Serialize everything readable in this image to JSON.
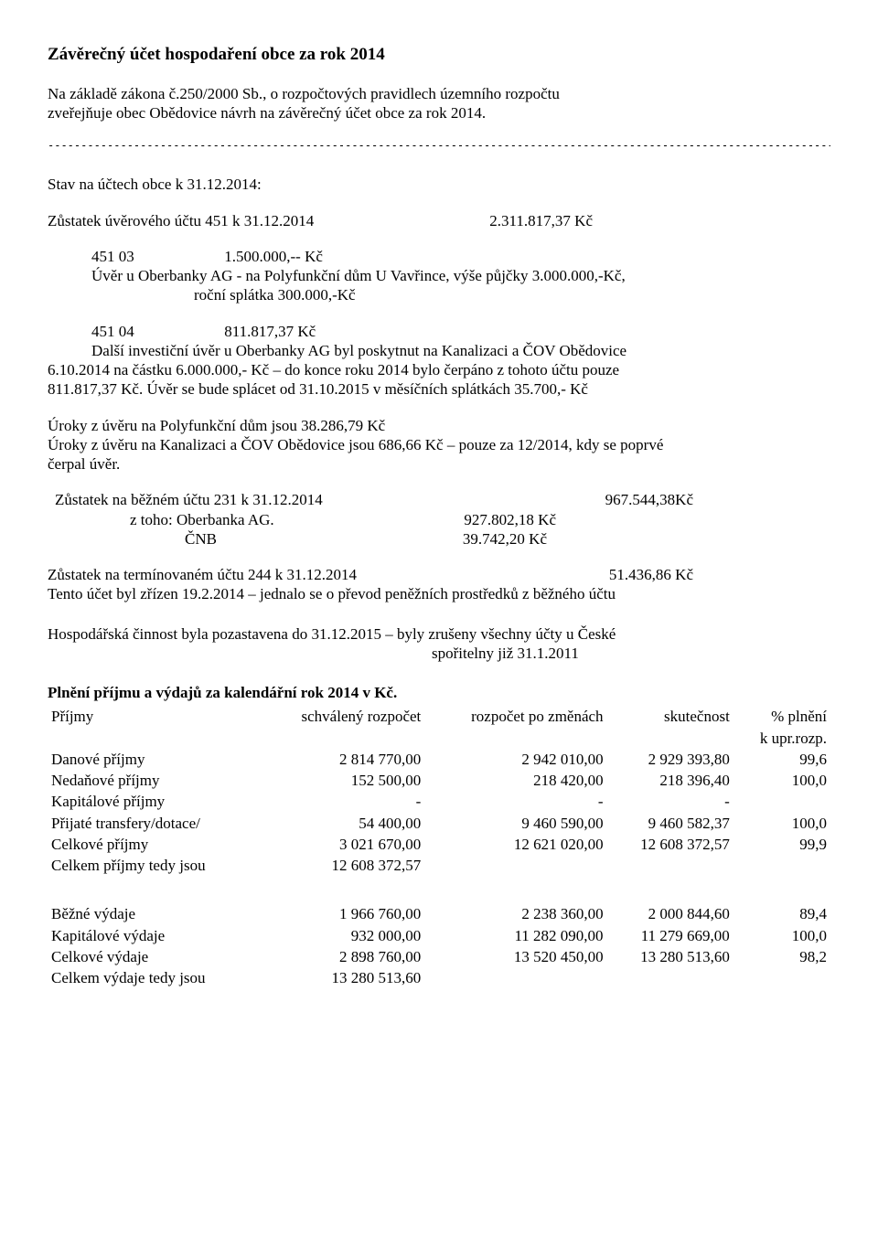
{
  "title": "Závěrečný účet hospodaření obce za rok 2014",
  "intro_l1": "Na základě zákona č.250/2000 Sb., o rozpočtových pravidlech územního rozpočtu",
  "intro_l2": "zveřejňuje obec Obědovice návrh na závěrečný účet obce za rok 2014.",
  "divider": "---------------------------------------------------------------------------------------------------------------------------------------------------------",
  "stav": "Stav na účtech obce k 31.12.2014:",
  "zust451_label": "Zůstatek úvěrového  účtu 451  k 31.12.2014",
  "zust451_value": "2.311.817,37 Kč",
  "acc451_03_code": "451 03",
  "acc451_03_val": "1.500.000,-- Kč",
  "acc451_03_l1": "Úvěr u Oberbanky AG  - na Polyfunkční dům U Vavřince,  výše půjčky  3.000.000,-Kč,",
  "acc451_03_l2": "roční splátka 300.000,-Kč",
  "acc451_04_code": "451 04",
  "acc451_04_val": "811.817,37 Kč",
  "acc451_04_l1": "Další investiční úvěr u Oberbanky AG byl poskytnut na Kanalizaci a ČOV Obědovice",
  "acc451_04_l2": "6.10.2014 na částku 6.000.000,- Kč – do konce roku 2014 bylo čerpáno z tohoto účtu pouze",
  "acc451_04_l3": "811.817,37 Kč. Úvěr se bude splácet od 31.10.2015 v měsíčních splátkách 35.700,- Kč",
  "uroky_l1": "Úroky z úvěru na Polyfunkční dům jsou 38.286,79 Kč",
  "uroky_l2": "Úroky z úvěru na Kanalizaci a ČOV Obědovice jsou 686,66 Kč – pouze za 12/2014, kdy se poprvé",
  "uroky_l3": "čerpal úvěr.",
  "bezny_l": "Zůstatek na běžném účtu  231  k 31.12.2014",
  "bezny_v": "967.544,38Kč",
  "bezny_sub1_l": "z toho:  Oberbanka AG.",
  "bezny_sub1_v": "927.802,18 Kč",
  "bezny_sub2_l": "ČNB",
  "bezny_sub2_v": "39.742,20 Kč",
  "term_l": "Zůstatek na termínovaném účtu 244 k 31.12.2014",
  "term_v": "51.436,86 Kč",
  "term_note": "Tento účet byl zřízen 19.2.2014 – jednalo se o převod peněžních prostředků z běžného účtu",
  "hosp_l1": "Hospodářská činnost byla pozastavena do  31.12.2015 – byly zrušeny všechny účty u České",
  "hosp_l2": "spořitelny již 31.1.2011",
  "plneni_title": "Plnění příjmu a výdajů za kalendářní rok 2014 v Kč.",
  "hdr": {
    "c1": "Příjmy",
    "c2": "schválený rozpočet",
    "c3": "rozpočet  po změnách",
    "c4": "skutečnost",
    "c5": "% plnění",
    "c5b": "k upr.rozp."
  },
  "rows_income": [
    {
      "l": "Danové příjmy",
      "a": "2 814 770,00",
      "b": "2 942 010,00",
      "c": "2 929 393,80",
      "p": "99,6",
      "bold": false
    },
    {
      "l": "Nedaňové příjmy",
      "a": "152 500,00",
      "b": "218 420,00",
      "c": "218 396,40",
      "p": "100,0",
      "bold": false
    },
    {
      "l": "Kapitálové příjmy",
      "a": "-",
      "b": "-",
      "c": "-",
      "p": "",
      "bold": false
    },
    {
      "l": "Přijaté transfery/dotace/",
      "a": "54 400,00",
      "b": "9 460 590,00",
      "c": "9 460 582,37",
      "p": "100,0",
      "bold": false
    },
    {
      "l": "Celkové příjmy",
      "a": "3 021 670,00",
      "b": "12 621 020,00",
      "c": "12 608 372,57",
      "p": "99,9",
      "bold": true
    }
  ],
  "income_total_l": "Celkem příjmy tedy jsou",
  "income_total_v": "12 608 372,57",
  "rows_expense": [
    {
      "l": "Běžné výdaje",
      "a": "1 966 760,00",
      "b": "2 238 360,00",
      "c": "2 000 844,60",
      "p": "89,4",
      "bold": false
    },
    {
      "l": "Kapitálové výdaje",
      "a": "932 000,00",
      "b": "11 282 090,00",
      "c": "11 279 669,00",
      "p": "100,0",
      "bold": false
    },
    {
      "l": "Celkové výdaje",
      "a": "2 898 760,00",
      "b": "13 520 450,00",
      "c": "13 280 513,60",
      "p": "98,2",
      "bold": true
    }
  ],
  "expense_total_l": "Celkem výdaje tedy jsou",
  "expense_total_v": "13 280 513,60"
}
